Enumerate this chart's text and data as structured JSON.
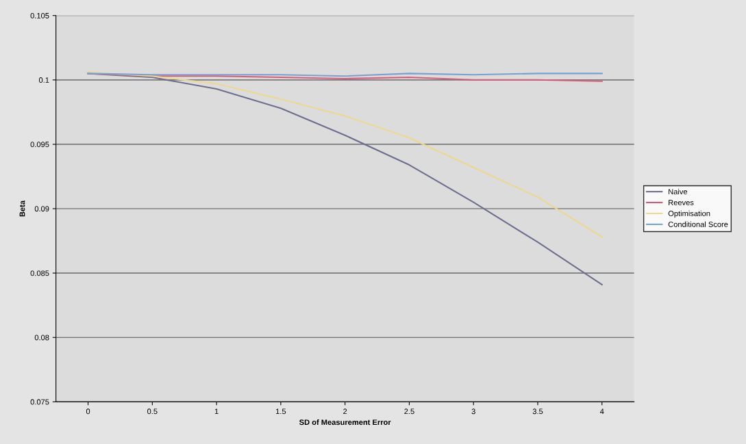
{
  "chart_data": {
    "type": "line",
    "xlabel": "SD of Measurement Error",
    "ylabel": "Beta",
    "categories": [
      "0",
      "0.5",
      "1",
      "1.5",
      "2",
      "2.5",
      "3",
      "3.5",
      "4"
    ],
    "series": [
      {
        "name": "Naive",
        "color": "#6e6e8e",
        "values": [
          0.1005,
          0.1002,
          0.0993,
          0.0978,
          0.0957,
          0.0934,
          0.0905,
          0.0874,
          0.0841
        ]
      },
      {
        "name": "Reeves",
        "color": "#d85c7a",
        "values": [
          0.1005,
          0.1003,
          0.1003,
          0.1002,
          0.1001,
          0.1002,
          0.1,
          0.1,
          0.0999
        ]
      },
      {
        "name": "Optimisation",
        "color": "#ecd890",
        "values": [
          0.1006,
          0.1003,
          0.0997,
          0.0985,
          0.0972,
          0.0955,
          0.0932,
          0.0909,
          0.0878
        ]
      },
      {
        "name": "Conditional Score",
        "color": "#7aa0d0",
        "values": [
          0.1005,
          0.1004,
          0.1004,
          0.1004,
          0.1003,
          0.1005,
          0.1004,
          0.1005,
          0.1005
        ]
      }
    ],
    "ylim": [
      0.075,
      0.105
    ],
    "yticks": [
      0.075,
      0.08,
      0.085,
      0.09,
      0.095,
      0.1,
      0.105
    ],
    "grid": "y",
    "legend": "right",
    "marker": "none",
    "line_style": "solid"
  }
}
